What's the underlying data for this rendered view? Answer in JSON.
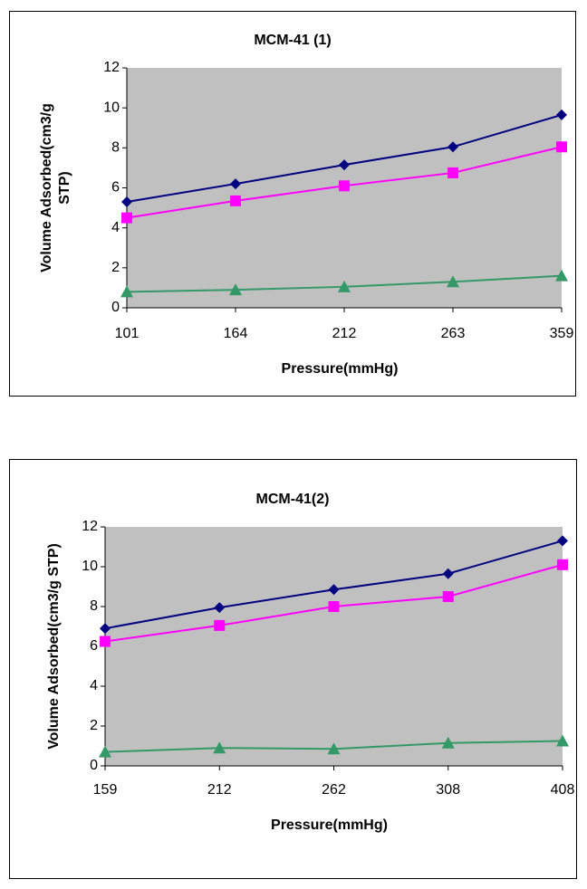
{
  "chart_data": [
    {
      "type": "line",
      "title": "MCM-41 (1)",
      "x_label": "Pressure(mmHg)",
      "y_label": [
        "Volume Adsorbed(cm3/g",
        "STP)"
      ],
      "categories": [
        "101",
        "164",
        "212",
        "263",
        "359"
      ],
      "series": [
        {
          "color": "#000080",
          "marker": "diamond",
          "values": [
            5.3,
            6.2,
            7.15,
            8.05,
            9.65
          ]
        },
        {
          "color": "#ff00ff",
          "marker": "square",
          "values": [
            4.5,
            5.35,
            6.1,
            6.75,
            8.05
          ]
        },
        {
          "color": "#339966",
          "marker": "triangle",
          "values": [
            0.8,
            0.9,
            1.05,
            1.3,
            1.6
          ]
        }
      ],
      "ylim": [
        0,
        12
      ],
      "yticks": [
        0,
        2,
        4,
        6,
        8,
        10,
        12
      ],
      "grid": false,
      "plot_background": "#c0c0c0"
    },
    {
      "type": "line",
      "title": "MCM-41(2)",
      "x_label": "Pressure(mmHg)",
      "y_label": [
        "Volume Adsorbed(cm3/g STP)"
      ],
      "categories": [
        "159",
        "212",
        "262",
        "308",
        "408"
      ],
      "series": [
        {
          "color": "#000080",
          "marker": "diamond",
          "values": [
            6.9,
            7.95,
            8.85,
            9.65,
            11.3
          ]
        },
        {
          "color": "#ff00ff",
          "marker": "square",
          "values": [
            6.25,
            7.05,
            8.0,
            8.5,
            10.1
          ]
        },
        {
          "color": "#339966",
          "marker": "triangle",
          "values": [
            0.7,
            0.9,
            0.85,
            1.15,
            1.25
          ]
        }
      ],
      "ylim": [
        0,
        12
      ],
      "yticks": [
        0,
        2,
        4,
        6,
        8,
        10,
        12
      ],
      "grid": false,
      "plot_background": "#c0c0c0"
    }
  ]
}
